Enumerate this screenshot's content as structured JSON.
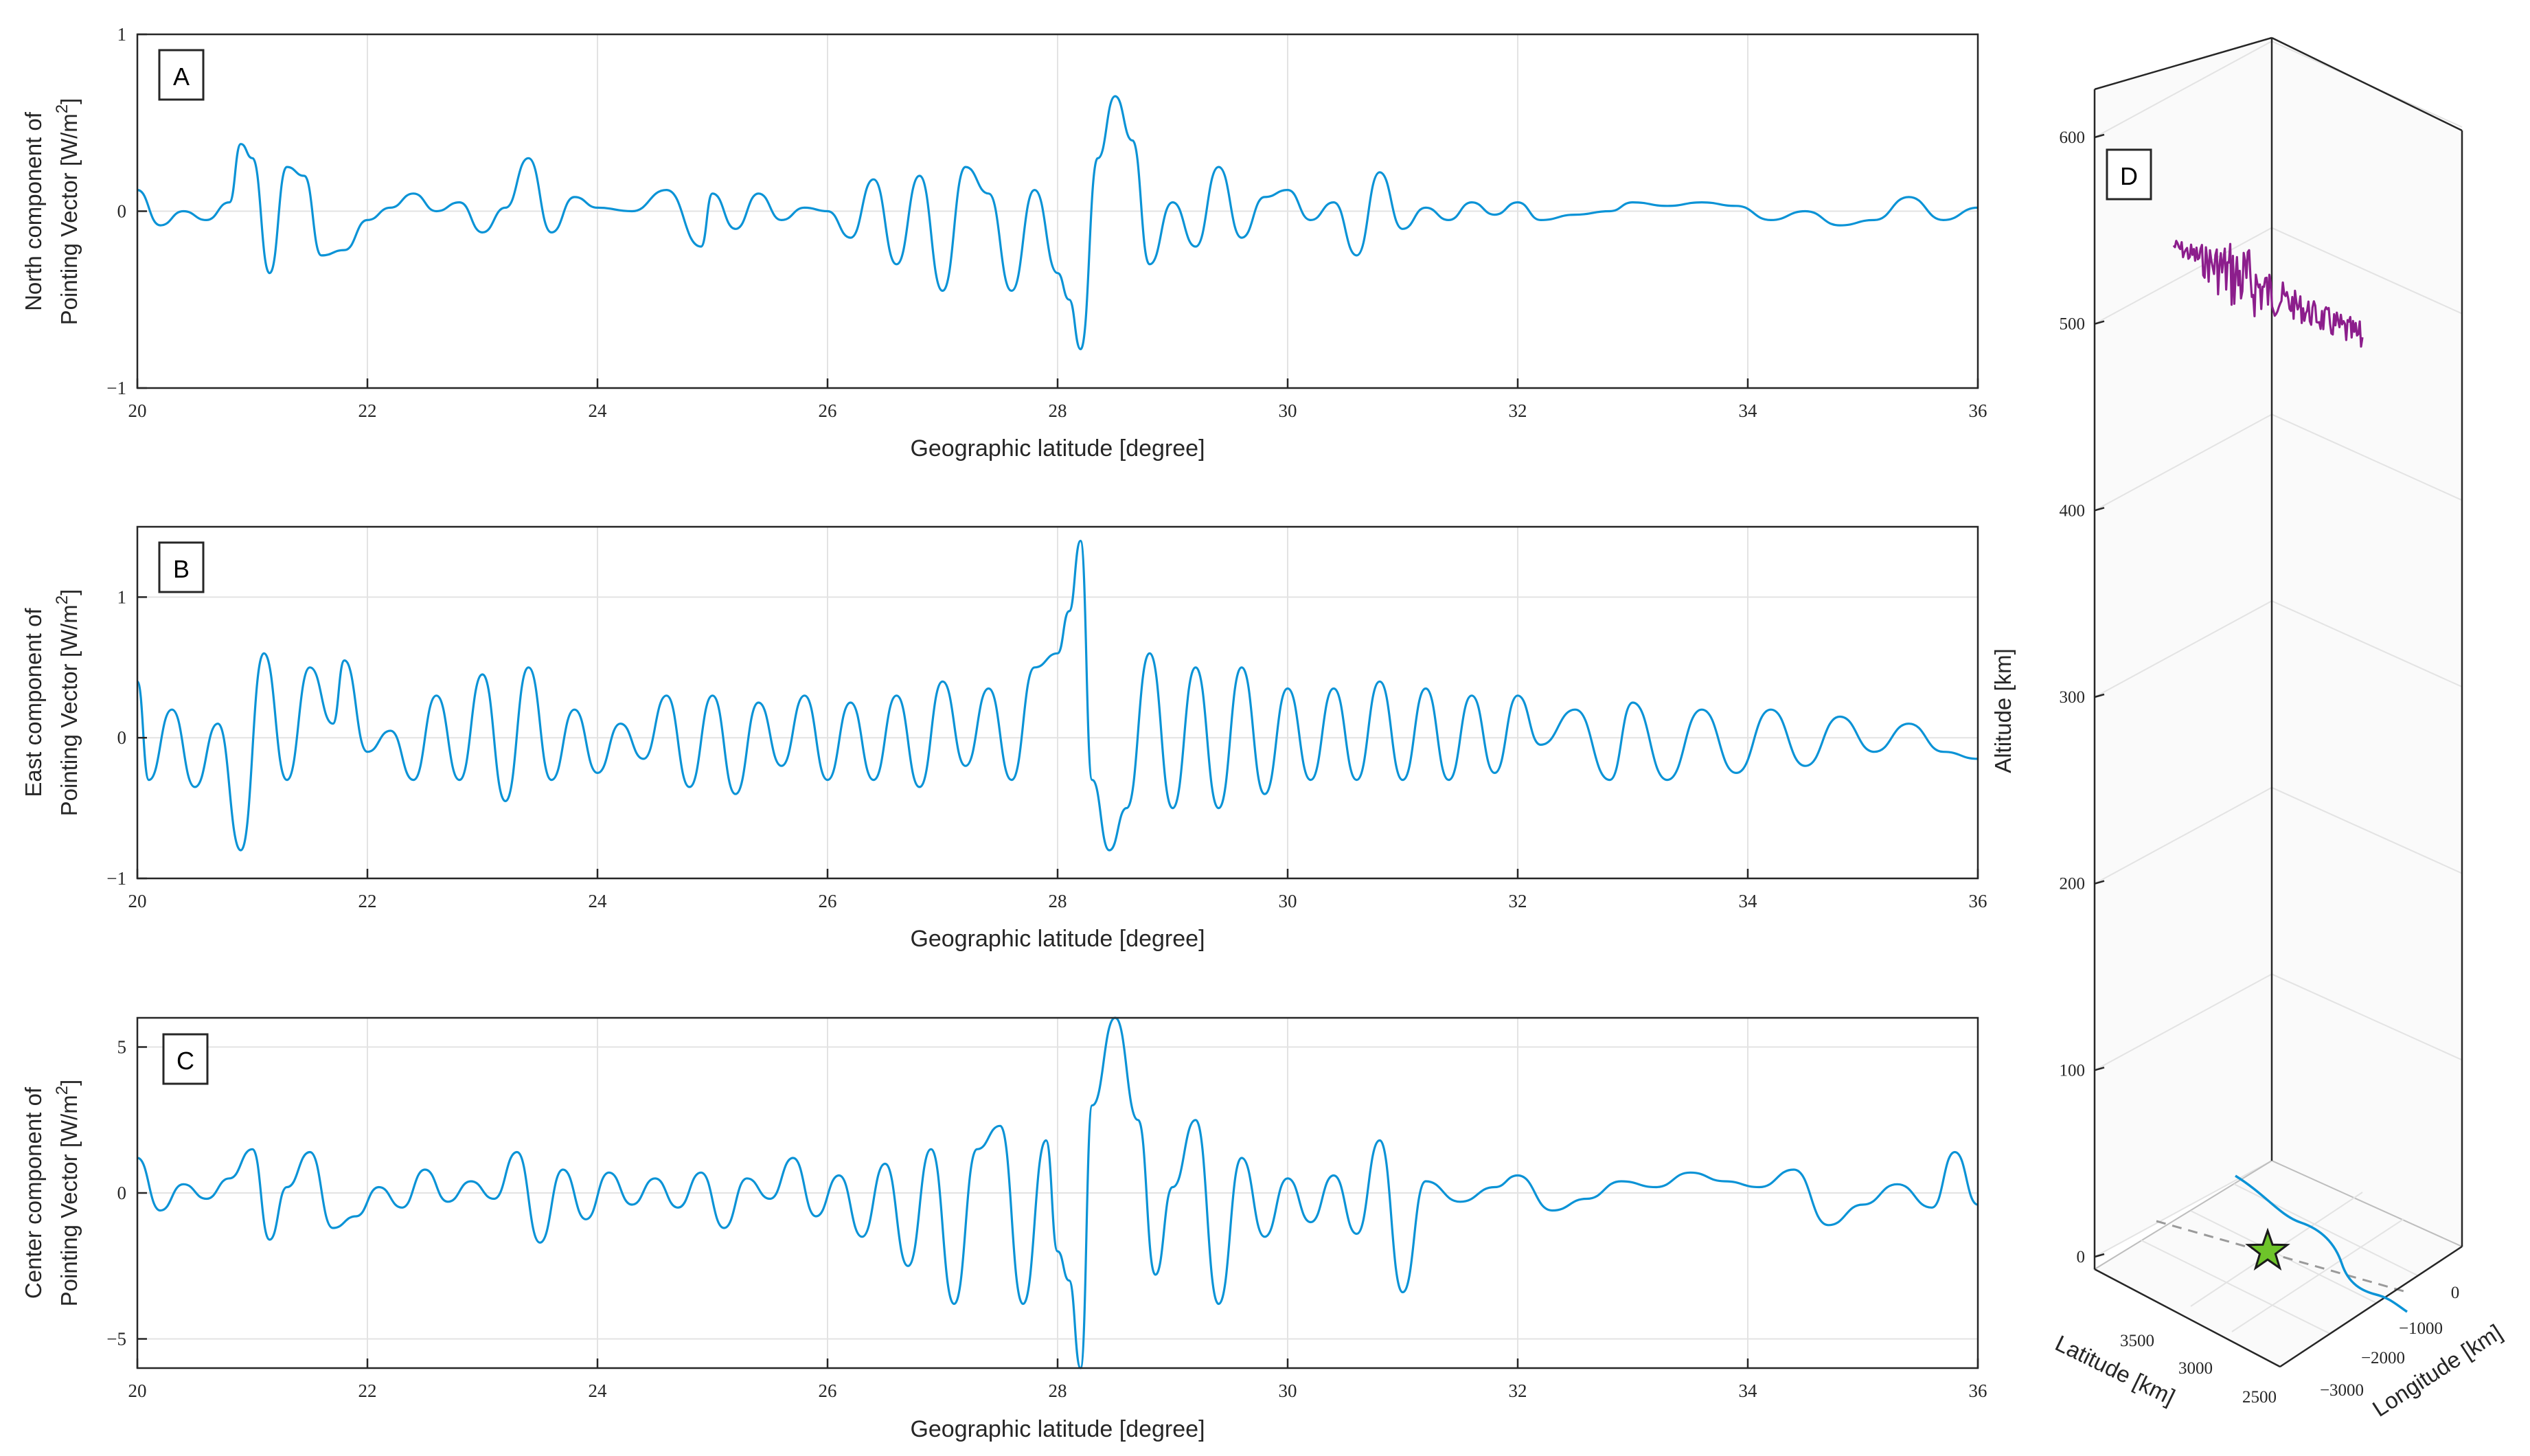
{
  "colors": {
    "series": "#0b93d6",
    "orbit": "#8c1e8c",
    "star": "#6ec42a",
    "axis": "#262626",
    "grid": "#e3e3e3"
  },
  "chart_data": [
    {
      "type": "line",
      "panel_label": "A",
      "ylabel_line1": "North component of",
      "ylabel_line2": "Pointing Vector [W/m",
      "ylabel_sup": "2",
      "ylabel_end": "]",
      "xlabel": "Geographic latitude [degree]",
      "xlim": [
        20,
        36
      ],
      "ylim": [
        -1,
        1
      ],
      "xticks": [
        "20",
        "22",
        "24",
        "26",
        "28",
        "30",
        "32",
        "34",
        "36"
      ],
      "yticks": [
        "1",
        "0",
        "−1"
      ],
      "series": [
        {
          "x": [
            20.0,
            20.2,
            20.4,
            20.6,
            20.8,
            20.9,
            21.0,
            21.15,
            21.3,
            21.45,
            21.6,
            21.8,
            22.0,
            22.2,
            22.4,
            22.6,
            22.8,
            23.0,
            23.2,
            23.4,
            23.6,
            23.8,
            24.0,
            24.3,
            24.6,
            24.9,
            25.0,
            25.2,
            25.4,
            25.6,
            25.8,
            26.0,
            26.2,
            26.4,
            26.6,
            26.8,
            27.0,
            27.2,
            27.4,
            27.6,
            27.8,
            28.0,
            28.1,
            28.2,
            28.35,
            28.5,
            28.65,
            28.8,
            29.0,
            29.2,
            29.4,
            29.6,
            29.8,
            30.0,
            30.2,
            30.4,
            30.6,
            30.8,
            31.0,
            31.2,
            31.4,
            31.6,
            31.8,
            32.0,
            32.2,
            32.5,
            32.8,
            33.0,
            33.3,
            33.6,
            33.9,
            34.2,
            34.5,
            34.8,
            35.1,
            35.4,
            35.7,
            36.0
          ],
          "y": [
            0.12,
            -0.08,
            0.0,
            -0.05,
            0.05,
            0.38,
            0.3,
            -0.35,
            0.25,
            0.2,
            -0.25,
            -0.22,
            -0.05,
            0.02,
            0.1,
            0.0,
            0.05,
            -0.12,
            0.02,
            0.3,
            -0.12,
            0.08,
            0.02,
            0.0,
            0.12,
            -0.2,
            0.1,
            -0.1,
            0.1,
            -0.05,
            0.02,
            0.0,
            -0.15,
            0.18,
            -0.3,
            0.2,
            -0.45,
            0.25,
            0.1,
            -0.45,
            0.12,
            -0.35,
            -0.5,
            -0.78,
            0.3,
            0.65,
            0.4,
            -0.3,
            0.05,
            -0.2,
            0.25,
            -0.15,
            0.08,
            0.12,
            -0.05,
            0.05,
            -0.25,
            0.22,
            -0.1,
            0.02,
            -0.05,
            0.05,
            -0.02,
            0.05,
            -0.05,
            -0.02,
            0.0,
            0.05,
            0.03,
            0.05,
            0.03,
            -0.05,
            0.0,
            -0.08,
            -0.05,
            0.08,
            -0.05,
            0.02
          ]
        }
      ]
    },
    {
      "type": "line",
      "panel_label": "B",
      "ylabel_line1": "East component of",
      "ylabel_line2": "Pointing Vector [W/m",
      "ylabel_sup": "2",
      "ylabel_end": "]",
      "xlabel": "Geographic latitude [degree]",
      "xlim": [
        20,
        36
      ],
      "ylim": [
        -1,
        1.5
      ],
      "xticks": [
        "20",
        "22",
        "24",
        "26",
        "28",
        "30",
        "32",
        "34",
        "36"
      ],
      "yticks": [
        "1",
        "0",
        "−1"
      ],
      "series": [
        {
          "x": [
            20.0,
            20.1,
            20.3,
            20.5,
            20.7,
            20.9,
            21.1,
            21.3,
            21.5,
            21.7,
            21.8,
            22.0,
            22.2,
            22.4,
            22.6,
            22.8,
            23.0,
            23.2,
            23.4,
            23.6,
            23.8,
            24.0,
            24.2,
            24.4,
            24.6,
            24.8,
            25.0,
            25.2,
            25.4,
            25.6,
            25.8,
            26.0,
            26.2,
            26.4,
            26.6,
            26.8,
            27.0,
            27.2,
            27.4,
            27.6,
            27.8,
            28.0,
            28.1,
            28.2,
            28.3,
            28.45,
            28.6,
            28.8,
            29.0,
            29.2,
            29.4,
            29.6,
            29.8,
            30.0,
            30.2,
            30.4,
            30.6,
            30.8,
            31.0,
            31.2,
            31.4,
            31.6,
            31.8,
            32.0,
            32.2,
            32.5,
            32.8,
            33.0,
            33.3,
            33.6,
            33.9,
            34.2,
            34.5,
            34.8,
            35.1,
            35.4,
            35.7,
            36.0
          ],
          "y": [
            0.4,
            -0.3,
            0.2,
            -0.35,
            0.1,
            -0.8,
            0.6,
            -0.3,
            0.5,
            0.1,
            0.55,
            -0.1,
            0.05,
            -0.3,
            0.3,
            -0.3,
            0.45,
            -0.45,
            0.5,
            -0.3,
            0.2,
            -0.25,
            0.1,
            -0.15,
            0.3,
            -0.35,
            0.3,
            -0.4,
            0.25,
            -0.2,
            0.3,
            -0.3,
            0.25,
            -0.3,
            0.3,
            -0.35,
            0.4,
            -0.2,
            0.35,
            -0.3,
            0.5,
            0.6,
            0.9,
            1.4,
            -0.3,
            -0.8,
            -0.5,
            0.6,
            -0.5,
            0.5,
            -0.5,
            0.5,
            -0.4,
            0.35,
            -0.3,
            0.35,
            -0.3,
            0.4,
            -0.3,
            0.35,
            -0.3,
            0.3,
            -0.25,
            0.3,
            -0.05,
            0.2,
            -0.3,
            0.25,
            -0.3,
            0.2,
            -0.25,
            0.2,
            -0.2,
            0.15,
            -0.1,
            0.1,
            -0.1,
            -0.15
          ]
        }
      ]
    },
    {
      "type": "line",
      "panel_label": "C",
      "ylabel_line1": "Center component of",
      "ylabel_line2": "Pointing Vector [W/m",
      "ylabel_sup": "2",
      "ylabel_end": "]",
      "xlabel": "Geographic latitude [degree]",
      "xlim": [
        20,
        36
      ],
      "ylim": [
        -6,
        6
      ],
      "xticks": [
        "20",
        "22",
        "24",
        "26",
        "28",
        "30",
        "32",
        "34",
        "36"
      ],
      "yticks": [
        "5",
        "0",
        "−5"
      ],
      "series": [
        {
          "x": [
            20.0,
            20.2,
            20.4,
            20.6,
            20.8,
            21.0,
            21.15,
            21.3,
            21.5,
            21.7,
            21.9,
            22.1,
            22.3,
            22.5,
            22.7,
            22.9,
            23.1,
            23.3,
            23.5,
            23.7,
            23.9,
            24.1,
            24.3,
            24.5,
            24.7,
            24.9,
            25.1,
            25.3,
            25.5,
            25.7,
            25.9,
            26.1,
            26.3,
            26.5,
            26.7,
            26.9,
            27.1,
            27.3,
            27.5,
            27.7,
            27.9,
            28.0,
            28.1,
            28.2,
            28.3,
            28.5,
            28.7,
            28.85,
            29.0,
            29.2,
            29.4,
            29.6,
            29.8,
            30.0,
            30.2,
            30.4,
            30.6,
            30.8,
            31.0,
            31.2,
            31.5,
            31.8,
            32.0,
            32.3,
            32.6,
            32.9,
            33.2,
            33.5,
            33.8,
            34.1,
            34.4,
            34.7,
            35.0,
            35.3,
            35.6,
            35.8,
            36.0
          ],
          "y": [
            1.2,
            -0.6,
            0.3,
            -0.2,
            0.5,
            1.5,
            -1.6,
            0.2,
            1.4,
            -1.2,
            -0.8,
            0.2,
            -0.5,
            0.8,
            -0.3,
            0.4,
            -0.2,
            1.4,
            -1.7,
            0.8,
            -0.9,
            0.7,
            -0.4,
            0.5,
            -0.5,
            0.7,
            -1.2,
            0.5,
            -0.2,
            1.2,
            -0.8,
            0.6,
            -1.5,
            1.0,
            -2.5,
            1.5,
            -3.8,
            1.5,
            2.3,
            -3.8,
            1.8,
            -2.0,
            -3.0,
            -6.0,
            3.0,
            6.0,
            2.5,
            -2.8,
            0.2,
            2.5,
            -3.8,
            1.2,
            -1.5,
            0.5,
            -1.0,
            0.6,
            -1.4,
            1.8,
            -3.4,
            0.4,
            -0.3,
            0.2,
            0.6,
            -0.6,
            -0.2,
            0.4,
            0.2,
            0.7,
            0.4,
            0.2,
            0.8,
            -1.1,
            -0.4,
            0.3,
            -0.5,
            1.4,
            -0.4
          ]
        }
      ]
    },
    {
      "type": "line3d",
      "panel_label": "D",
      "zlabel": "Altitude [km]",
      "xlabel": "Latitude [km]",
      "ylabel": "Longitude [km]",
      "zlim": [
        0,
        600
      ],
      "zticks": [
        "600",
        "500",
        "400",
        "300",
        "200",
        "100",
        "0"
      ],
      "lat_ticks": [
        "3500",
        "3000",
        "2500"
      ],
      "lon_ticks": [
        "0",
        "−1000",
        "−2000",
        "−3000"
      ],
      "orbit": {
        "altitude_range_km": [
          480,
          560
        ]
      },
      "marker": "epicenter star"
    }
  ]
}
